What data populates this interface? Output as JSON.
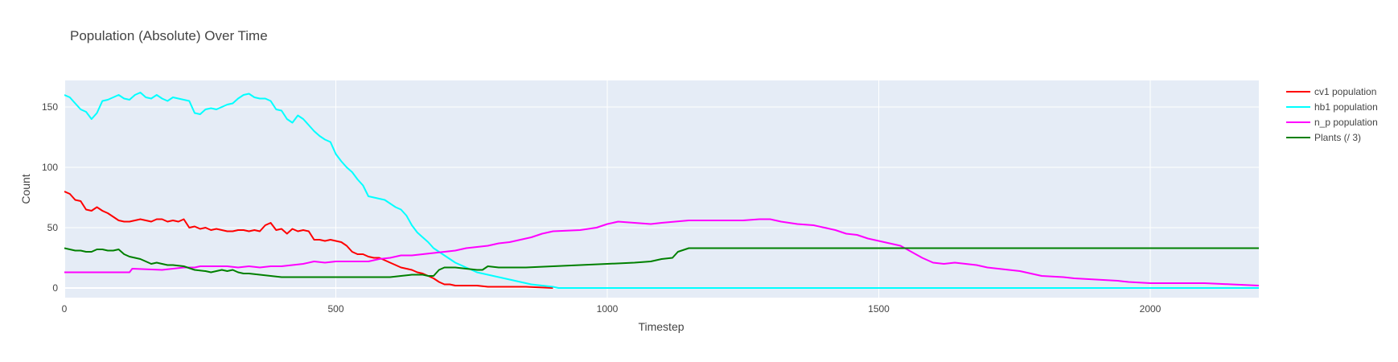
{
  "chart_data": {
    "type": "line",
    "title": "Population (Absolute) Over Time",
    "xlabel": "Timestep",
    "ylabel": "Count",
    "xlim": [
      0,
      2200
    ],
    "ylim": [
      -8,
      172
    ],
    "xticks": [
      0,
      500,
      1000,
      1500,
      2000
    ],
    "xtick_labels": [
      "0",
      "500",
      "1000",
      "1500",
      "2000"
    ],
    "yticks": [
      0,
      50,
      100,
      150
    ],
    "ytick_labels": [
      "0",
      "50",
      "100",
      "150"
    ],
    "grid": true,
    "legend_position": "top-right",
    "plot_background": "#E5ECF6",
    "series": [
      {
        "name": "cv1 population",
        "color": "#FF0000",
        "x": [
          0,
          10,
          20,
          30,
          40,
          50,
          60,
          70,
          80,
          90,
          100,
          110,
          120,
          130,
          140,
          150,
          160,
          170,
          180,
          190,
          200,
          210,
          220,
          230,
          240,
          250,
          260,
          270,
          280,
          290,
          300,
          310,
          320,
          330,
          340,
          350,
          360,
          370,
          380,
          390,
          400,
          410,
          420,
          430,
          440,
          450,
          460,
          470,
          480,
          490,
          500,
          510,
          520,
          530,
          540,
          550,
          560,
          570,
          580,
          590,
          600,
          610,
          620,
          630,
          640,
          650,
          660,
          670,
          680,
          690,
          700,
          710,
          720,
          730,
          740,
          760,
          780,
          800,
          850,
          900
        ],
        "y": [
          80,
          78,
          73,
          72,
          65,
          64,
          67,
          64,
          62,
          59,
          56,
          55,
          55,
          56,
          57,
          56,
          55,
          57,
          57,
          55,
          56,
          55,
          57,
          50,
          51,
          49,
          50,
          48,
          49,
          48,
          47,
          47,
          48,
          48,
          47,
          48,
          47,
          52,
          54,
          48,
          49,
          45,
          49,
          47,
          48,
          47,
          40,
          40,
          39,
          40,
          39,
          38,
          35,
          30,
          28,
          28,
          26,
          25,
          25,
          23,
          21,
          19,
          17,
          16,
          15,
          13,
          12,
          10,
          8,
          5,
          3,
          3,
          2,
          2,
          2,
          2,
          1,
          1,
          1,
          0
        ]
      },
      {
        "name": "hb1 population",
        "color": "#00FFFF",
        "x": [
          0,
          10,
          20,
          30,
          40,
          50,
          60,
          70,
          80,
          90,
          100,
          110,
          120,
          130,
          140,
          150,
          160,
          170,
          180,
          190,
          200,
          210,
          220,
          230,
          240,
          250,
          260,
          270,
          280,
          290,
          300,
          310,
          320,
          330,
          340,
          350,
          360,
          370,
          380,
          390,
          400,
          410,
          420,
          430,
          440,
          450,
          460,
          470,
          480,
          490,
          500,
          510,
          520,
          530,
          540,
          550,
          560,
          570,
          580,
          590,
          600,
          610,
          620,
          630,
          640,
          650,
          660,
          670,
          680,
          690,
          700,
          710,
          720,
          730,
          740,
          750,
          760,
          780,
          800,
          820,
          840,
          860,
          880,
          900,
          910,
          1000,
          1500,
          2200
        ],
        "y": [
          160,
          158,
          153,
          148,
          146,
          140,
          145,
          155,
          156,
          158,
          160,
          157,
          156,
          160,
          162,
          158,
          157,
          160,
          157,
          155,
          158,
          157,
          156,
          155,
          145,
          144,
          148,
          149,
          148,
          150,
          152,
          153,
          157,
          160,
          161,
          158,
          157,
          157,
          155,
          148,
          147,
          140,
          137,
          143,
          140,
          135,
          130,
          126,
          123,
          121,
          111,
          105,
          100,
          96,
          90,
          85,
          76,
          75,
          74,
          73,
          70,
          67,
          65,
          60,
          52,
          46,
          42,
          38,
          33,
          30,
          27,
          24,
          21,
          19,
          17,
          15,
          13,
          11,
          9,
          7,
          5,
          3,
          2,
          1,
          0,
          0,
          0,
          0
        ]
      },
      {
        "name": "n_p population",
        "color": "#FF00FF",
        "x": [
          0,
          120,
          125,
          180,
          200,
          220,
          240,
          250,
          300,
          320,
          340,
          360,
          380,
          400,
          420,
          440,
          460,
          480,
          500,
          520,
          560,
          580,
          600,
          620,
          640,
          660,
          680,
          700,
          720,
          740,
          760,
          780,
          800,
          820,
          840,
          860,
          880,
          900,
          950,
          980,
          1000,
          1020,
          1050,
          1080,
          1100,
          1150,
          1200,
          1250,
          1280,
          1300,
          1320,
          1350,
          1380,
          1400,
          1420,
          1440,
          1460,
          1480,
          1500,
          1520,
          1540,
          1560,
          1580,
          1600,
          1620,
          1640,
          1660,
          1680,
          1700,
          1720,
          1740,
          1760,
          1780,
          1800,
          1840,
          1860,
          1900,
          1940,
          1960,
          2000,
          2100,
          2150,
          2200
        ],
        "y": [
          13,
          13,
          16,
          15,
          16,
          17,
          17,
          18,
          18,
          17,
          18,
          17,
          18,
          18,
          19,
          20,
          22,
          21,
          22,
          22,
          22,
          24,
          25,
          27,
          27,
          28,
          29,
          30,
          31,
          33,
          34,
          35,
          37,
          38,
          40,
          42,
          45,
          47,
          48,
          50,
          53,
          55,
          54,
          53,
          54,
          56,
          56,
          56,
          57,
          57,
          55,
          53,
          52,
          50,
          48,
          45,
          44,
          41,
          39,
          37,
          35,
          30,
          25,
          21,
          20,
          21,
          20,
          19,
          17,
          16,
          15,
          14,
          12,
          10,
          9,
          8,
          7,
          6,
          5,
          4,
          4,
          3,
          2
        ]
      },
      {
        "name": "Plants (/ 3)",
        "color": "#008000",
        "x": [
          0,
          10,
          20,
          30,
          40,
          50,
          60,
          70,
          80,
          90,
          100,
          110,
          120,
          130,
          140,
          150,
          160,
          170,
          180,
          190,
          200,
          220,
          240,
          260,
          270,
          280,
          290,
          300,
          310,
          320,
          330,
          340,
          360,
          380,
          400,
          420,
          440,
          460,
          480,
          500,
          520,
          540,
          560,
          580,
          600,
          620,
          640,
          660,
          670,
          680,
          690,
          700,
          720,
          740,
          760,
          770,
          780,
          800,
          850,
          900,
          950,
          1000,
          1050,
          1080,
          1100,
          1120,
          1130,
          1150,
          2200
        ],
        "y": [
          33,
          32,
          31,
          31,
          30,
          30,
          32,
          32,
          31,
          31,
          32,
          28,
          26,
          25,
          24,
          22,
          20,
          21,
          20,
          19,
          19,
          18,
          15,
          14,
          13,
          14,
          15,
          14,
          15,
          13,
          12,
          12,
          11,
          10,
          9,
          9,
          9,
          9,
          9,
          9,
          9,
          9,
          9,
          9,
          9,
          10,
          11,
          11,
          10,
          10,
          15,
          17,
          17,
          16,
          15,
          15,
          18,
          17,
          17,
          18,
          19,
          20,
          21,
          22,
          24,
          25,
          30,
          33,
          33
        ]
      }
    ]
  }
}
